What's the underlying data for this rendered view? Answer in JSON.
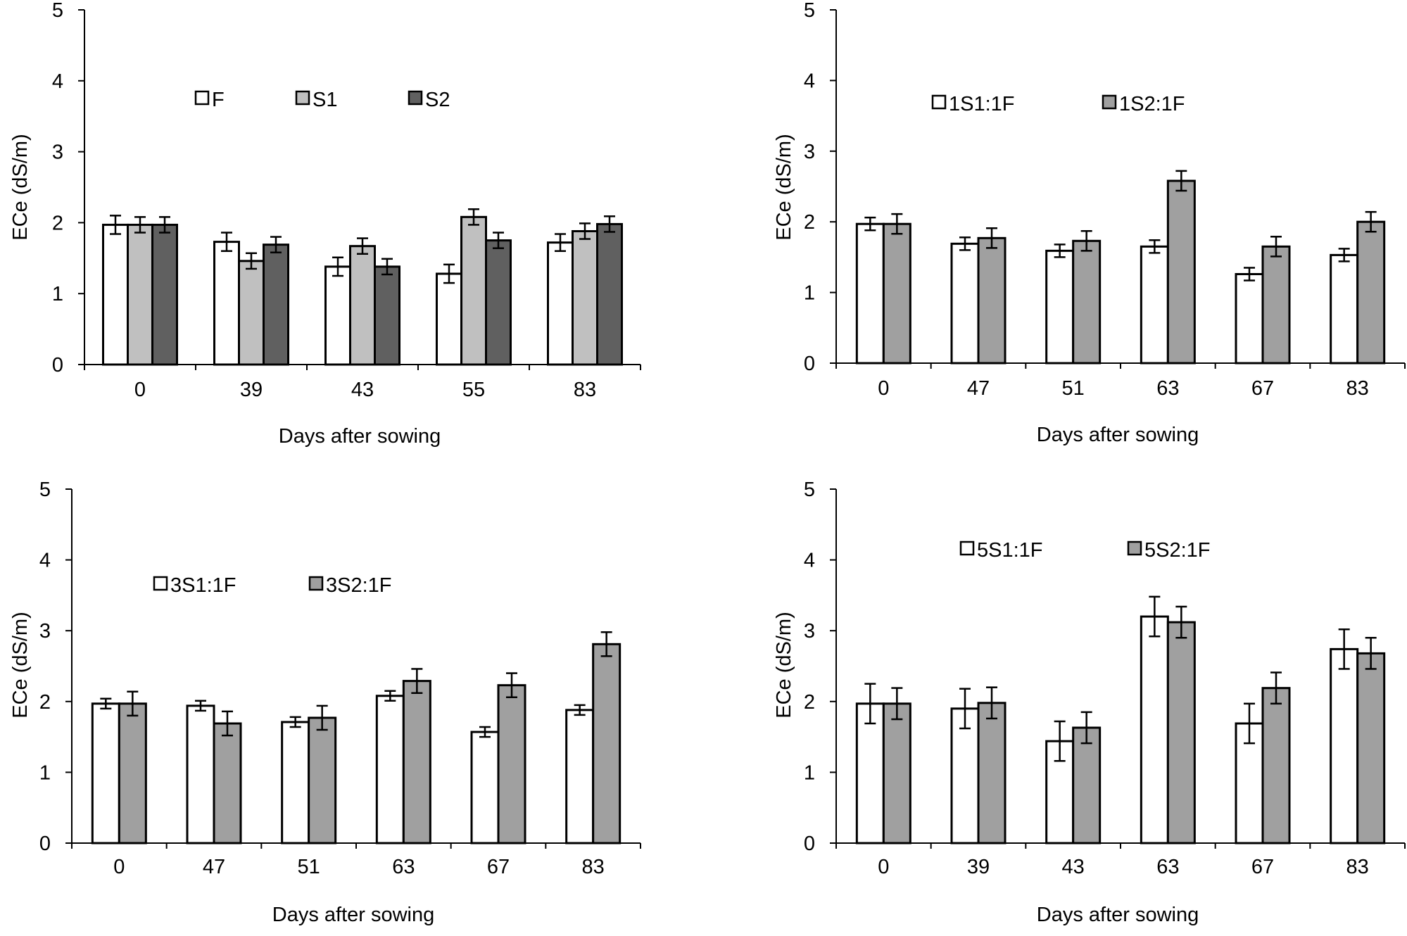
{
  "chart_data": [
    {
      "type": "bar",
      "ylabel": "ECe (dS/m)",
      "xlabel": "Days after sowing",
      "ylim": [
        0,
        5
      ],
      "yticks": [
        "0",
        "1",
        "2",
        "3",
        "4",
        "5"
      ],
      "categories": [
        "0",
        "39",
        "43",
        "55",
        "83"
      ],
      "series": [
        {
          "name": "F",
          "color": "#ffffff",
          "values": [
            1.97,
            1.73,
            1.38,
            1.28,
            1.72
          ],
          "errors": [
            0.13,
            0.13,
            0.13,
            0.13,
            0.12
          ]
        },
        {
          "name": "S1",
          "color": "#c0c0c0",
          "values": [
            1.97,
            1.46,
            1.67,
            2.08,
            1.88
          ],
          "errors": [
            0.11,
            0.11,
            0.11,
            0.11,
            0.11
          ]
        },
        {
          "name": "S2",
          "color": "#606060",
          "values": [
            1.97,
            1.69,
            1.38,
            1.75,
            1.98
          ],
          "errors": [
            0.11,
            0.11,
            0.11,
            0.11,
            0.11
          ]
        }
      ],
      "legend_position": "top-center",
      "grid": false
    },
    {
      "type": "bar",
      "ylabel": "ECe (dS/m)",
      "xlabel": "Days after sowing",
      "ylim": [
        0,
        5
      ],
      "yticks": [
        "0",
        "1",
        "2",
        "3",
        "4",
        "5"
      ],
      "categories": [
        "0",
        "47",
        "51",
        "63",
        "67",
        "83"
      ],
      "series": [
        {
          "name": "1S1:1F",
          "color": "#ffffff",
          "values": [
            1.97,
            1.69,
            1.59,
            1.65,
            1.26,
            1.53
          ],
          "errors": [
            0.09,
            0.09,
            0.09,
            0.09,
            0.09,
            0.09
          ]
        },
        {
          "name": "1S2:1F",
          "color": "#a0a0a0",
          "values": [
            1.97,
            1.77,
            1.73,
            2.58,
            1.65,
            2.0
          ],
          "errors": [
            0.14,
            0.14,
            0.14,
            0.14,
            0.14,
            0.14
          ]
        }
      ],
      "legend_position": "top-center",
      "grid": false
    },
    {
      "type": "bar",
      "ylabel": "ECe (dS/m)",
      "xlabel": "Days after sowing",
      "ylim": [
        0,
        5
      ],
      "yticks": [
        "0",
        "1",
        "2",
        "3",
        "4",
        "5"
      ],
      "categories": [
        "0",
        "47",
        "51",
        "63",
        "67",
        "83"
      ],
      "series": [
        {
          "name": "3S1:1F",
          "color": "#ffffff",
          "values": [
            1.97,
            1.94,
            1.71,
            2.08,
            1.57,
            1.88
          ],
          "errors": [
            0.07,
            0.07,
            0.07,
            0.07,
            0.07,
            0.07
          ]
        },
        {
          "name": "3S2:1F",
          "color": "#a0a0a0",
          "values": [
            1.97,
            1.69,
            1.77,
            2.29,
            2.23,
            2.81
          ],
          "errors": [
            0.17,
            0.17,
            0.17,
            0.17,
            0.17,
            0.17
          ]
        }
      ],
      "legend_position": "top-center",
      "grid": false
    },
    {
      "type": "bar",
      "ylabel": "ECe (dS/m)",
      "xlabel": "Days after sowing",
      "ylim": [
        0,
        5
      ],
      "yticks": [
        "0",
        "1",
        "2",
        "3",
        "4",
        "5"
      ],
      "categories": [
        "0",
        "39",
        "43",
        "63",
        "67",
        "83"
      ],
      "series": [
        {
          "name": "5S1:1F",
          "color": "#ffffff",
          "values": [
            1.97,
            1.9,
            1.44,
            3.2,
            1.69,
            2.74
          ],
          "errors": [
            0.28,
            0.28,
            0.28,
            0.28,
            0.28,
            0.28
          ]
        },
        {
          "name": "5S2:1F",
          "color": "#a0a0a0",
          "values": [
            1.97,
            1.98,
            1.63,
            3.12,
            2.19,
            2.68
          ],
          "errors": [
            0.22,
            0.22,
            0.22,
            0.22,
            0.22,
            0.22
          ]
        }
      ],
      "legend_position": "top-center",
      "grid": false
    }
  ]
}
